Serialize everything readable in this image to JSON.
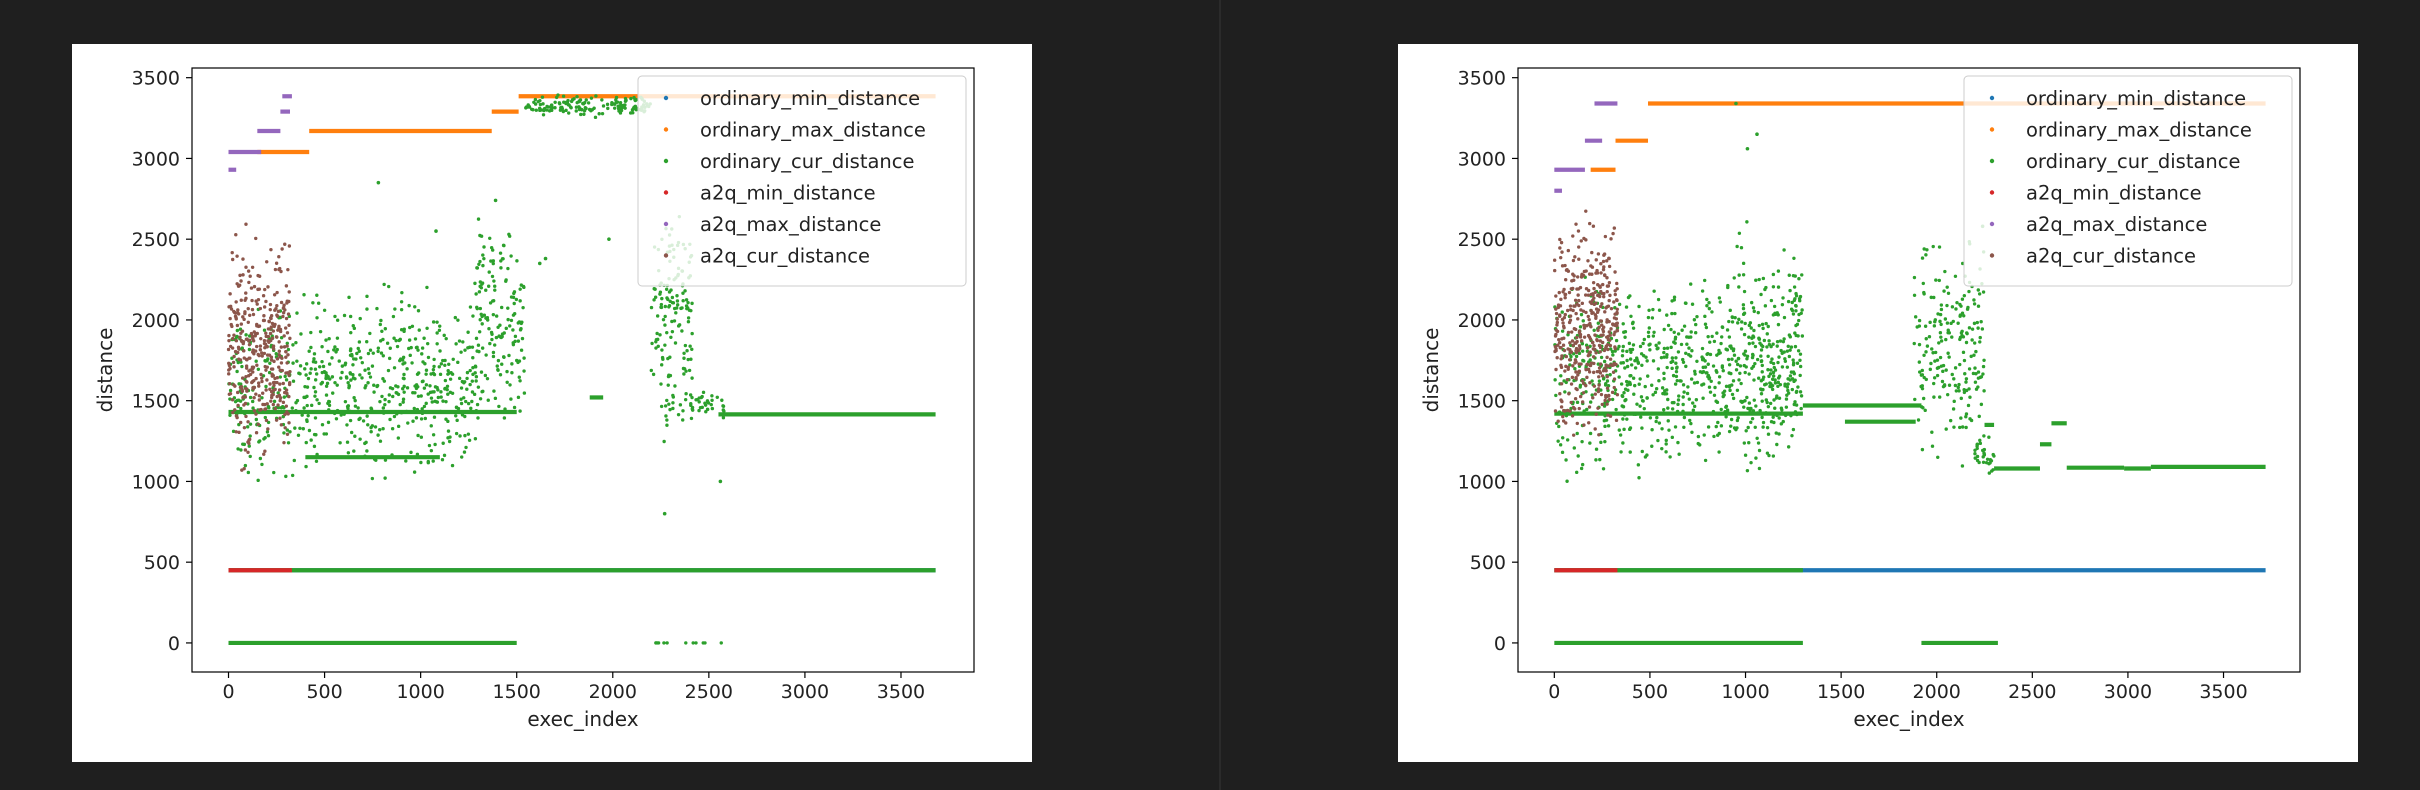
{
  "colors": {
    "ordinary_min_distance": "#1f77b4",
    "ordinary_max_distance": "#ff7f0e",
    "ordinary_cur_distance": "#2ca02c",
    "a2q_min_distance": "#d62728",
    "a2q_max_distance": "#9467bd",
    "a2q_cur_distance": "#8c564b"
  },
  "chart_data": [
    {
      "type": "scatter",
      "xlabel": "exec_index",
      "ylabel": "distance",
      "xlim": [
        -190,
        3880
      ],
      "ylim": [
        -180,
        3560
      ],
      "xticks": [
        0,
        500,
        1000,
        1500,
        2000,
        2500,
        3000,
        3500
      ],
      "yticks": [
        0,
        500,
        1000,
        1500,
        2000,
        2500,
        3000,
        3500
      ],
      "legend_position": "top-right",
      "series": [
        {
          "name": "ordinary_min_distance",
          "segments": [
            [
              0,
              3680,
              450
            ]
          ]
        },
        {
          "name": "ordinary_max_distance",
          "segments": [
            [
              150,
              420,
              3040
            ],
            [
              420,
              1370,
              3170
            ],
            [
              1370,
              1510,
              3290
            ],
            [
              1510,
              3680,
              3385
            ]
          ]
        },
        {
          "name": "ordinary_cur_distance",
          "segments": [
            [
              0,
              1500,
              1430
            ],
            [
              400,
              1100,
              1150
            ],
            [
              0,
              3680,
              450
            ],
            [
              0,
              1500,
              0
            ],
            [
              2550,
              3680,
              1415
            ],
            [
              1880,
              1950,
              1520
            ]
          ],
          "clusters": [
            [
              0,
              1300,
              900,
              2300,
              650
            ],
            [
              1280,
              1540,
              1200,
              2700,
              160
            ],
            [
              1540,
              2200,
              3240,
              3420,
              150
            ],
            [
              2200,
              2420,
              1200,
              2900,
              140
            ],
            [
              2250,
              2580,
              1350,
              1600,
              50
            ],
            [
              2200,
              2600,
              0,
              0,
              12
            ]
          ],
          "points": [
            [
              1080,
              2550
            ],
            [
              1390,
              2740
            ],
            [
              780,
              2850
            ],
            [
              2270,
              800
            ],
            [
              2560,
              1000
            ],
            [
              1980,
              2500
            ],
            [
              1620,
              2350
            ],
            [
              1650,
              2380
            ]
          ]
        },
        {
          "name": "a2q_min_distance",
          "segments": [
            [
              0,
              330,
              450
            ]
          ]
        },
        {
          "name": "a2q_max_distance",
          "segments": [
            [
              0,
              40,
              2930
            ],
            [
              0,
              170,
              3040
            ],
            [
              150,
              270,
              3170
            ],
            [
              270,
              320,
              3290
            ],
            [
              280,
              330,
              3385
            ]
          ]
        },
        {
          "name": "a2q_cur_distance",
          "clusters": [
            [
              0,
              320,
              1000,
              2650,
              380
            ]
          ]
        }
      ]
    },
    {
      "type": "scatter",
      "xlabel": "exec_index",
      "ylabel": "distance",
      "xlim": [
        -190,
        3900
      ],
      "ylim": [
        -180,
        3560
      ],
      "xticks": [
        0,
        500,
        1000,
        1500,
        2000,
        2500,
        3000,
        3500
      ],
      "yticks": [
        0,
        500,
        1000,
        1500,
        2000,
        2500,
        3000,
        3500
      ],
      "legend_position": "top-right",
      "series": [
        {
          "name": "ordinary_min_distance",
          "segments": [
            [
              0,
              3720,
              450
            ]
          ]
        },
        {
          "name": "ordinary_max_distance",
          "segments": [
            [
              190,
              320,
              2930
            ],
            [
              320,
              490,
              3110
            ],
            [
              490,
              3720,
              3340
            ]
          ]
        },
        {
          "name": "ordinary_cur_distance",
          "segments": [
            [
              0,
              1300,
              1420
            ],
            [
              1300,
              1920,
              1470
            ],
            [
              1520,
              1890,
              1370
            ],
            [
              2250,
              2300,
              1350
            ],
            [
              2300,
              2540,
              1080
            ],
            [
              2540,
              2600,
              1230
            ],
            [
              2600,
              2680,
              1360
            ],
            [
              2680,
              2980,
              1085
            ],
            [
              2980,
              3120,
              1080
            ],
            [
              3120,
              3720,
              1090
            ],
            [
              0,
              1300,
              450
            ],
            [
              0,
              1300,
              0
            ],
            [
              1920,
              2320,
              0
            ]
          ],
          "clusters": [
            [
              0,
              1300,
              900,
              2400,
              750
            ],
            [
              900,
              1300,
              1200,
              2700,
              120
            ],
            [
              1880,
              2250,
              1000,
              2650,
              210
            ],
            [
              2200,
              2300,
              1000,
              1350,
              30
            ]
          ],
          "points": [
            [
              1010,
              3060
            ],
            [
              1060,
              3150
            ],
            [
              950,
              3340
            ],
            [
              2240,
              2580
            ]
          ]
        },
        {
          "name": "a2q_min_distance",
          "segments": [
            [
              0,
              330,
              450
            ]
          ]
        },
        {
          "name": "a2q_max_distance",
          "segments": [
            [
              0,
              40,
              2800
            ],
            [
              0,
              160,
              2930
            ],
            [
              160,
              250,
              3110
            ],
            [
              210,
              330,
              3340
            ]
          ]
        },
        {
          "name": "a2q_cur_distance",
          "clusters": [
            [
              0,
              330,
              1050,
              2850,
              420
            ]
          ]
        }
      ]
    }
  ]
}
